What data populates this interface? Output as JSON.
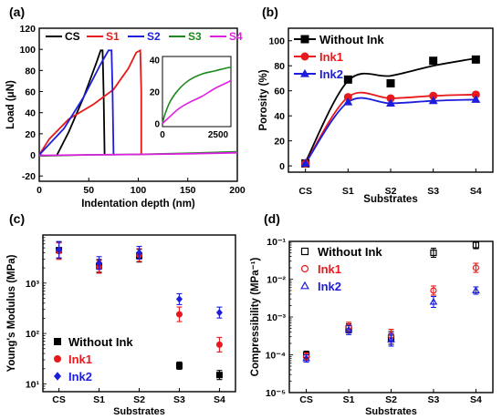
{
  "chart_data": [
    {
      "panel": "(a)",
      "type": "line",
      "xlabel": "Indentation depth (nm)",
      "ylabel": "Load (μN)",
      "xlim": [
        0,
        200
      ],
      "ylim": [
        -25,
        120
      ],
      "xticks": [
        "0",
        "50",
        "100",
        "150",
        "200"
      ],
      "yticks": [
        "-20",
        "0",
        "20",
        "40",
        "60",
        "80",
        "100",
        "120"
      ],
      "legend_position": "top",
      "series": [
        {
          "name": "CS",
          "color": "#000000",
          "points": [
            [
              18,
              0
            ],
            [
              30,
              22
            ],
            [
              45,
              55
            ],
            [
              58,
              88
            ],
            [
              62,
              99
            ],
            [
              64,
              99
            ],
            [
              65,
              60
            ],
            [
              66,
              0
            ]
          ]
        },
        {
          "name": "S1",
          "color": "#e8191c",
          "points": [
            [
              0,
              0
            ],
            [
              10,
              15
            ],
            [
              30,
              34
            ],
            [
              55,
              48
            ],
            [
              75,
              62
            ],
            [
              90,
              82
            ],
            [
              98,
              97
            ],
            [
              102,
              99
            ],
            [
              103,
              60
            ],
            [
              103,
              0
            ]
          ]
        },
        {
          "name": "S2",
          "color": "#1d1ddb",
          "points": [
            [
              0,
              0
            ],
            [
              25,
              25
            ],
            [
              45,
              55
            ],
            [
              62,
              86
            ],
            [
              70,
              99
            ],
            [
              73,
              99
            ],
            [
              74,
              60
            ],
            [
              75,
              0
            ]
          ]
        },
        {
          "name": "S3",
          "color": "#1c8a1c",
          "points": [
            [
              0,
              -1
            ],
            [
              50,
              0
            ],
            [
              100,
              0.5
            ],
            [
              150,
              1.5
            ],
            [
              200,
              3
            ]
          ]
        },
        {
          "name": "S4",
          "color": "#e020e0",
          "points": [
            [
              0,
              -0.5
            ],
            [
              50,
              0
            ],
            [
              100,
              0.5
            ],
            [
              150,
              1
            ],
            [
              200,
              2
            ]
          ]
        }
      ],
      "inset": {
        "xlim": [
          0,
          2600
        ],
        "ylim": [
          -2,
          42
        ],
        "xticks": [
          "0",
          "2500"
        ],
        "yticks": [
          "0",
          "20",
          "40"
        ],
        "series": [
          {
            "name": "S3",
            "color": "#1c8a1c",
            "points": [
              [
                0,
                0
              ],
              [
                100,
                6
              ],
              [
                300,
                14
              ],
              [
                600,
                21
              ],
              [
                1000,
                27
              ],
              [
                1500,
                31
              ],
              [
                2000,
                33
              ],
              [
                2500,
                35
              ],
              [
                2600,
                35
              ]
            ]
          },
          {
            "name": "S4",
            "color": "#e020e0",
            "points": [
              [
                0,
                0
              ],
              [
                200,
                3
              ],
              [
                600,
                9
              ],
              [
                1000,
                13
              ],
              [
                1500,
                17
              ],
              [
                2000,
                22
              ],
              [
                2500,
                26
              ],
              [
                2600,
                27
              ]
            ]
          }
        ]
      }
    },
    {
      "panel": "(b)",
      "type": "scatter",
      "xlabel": "Substrates",
      "ylabel": "Porosity (%)",
      "categories": [
        "CS",
        "S1",
        "S2",
        "S3",
        "S4"
      ],
      "ylim": [
        -5,
        110
      ],
      "yticks": [
        "0",
        "20",
        "40",
        "60",
        "80",
        "100"
      ],
      "legend_position": "top-left",
      "series": [
        {
          "name": "Without Ink",
          "color": "#000000",
          "marker": "square",
          "values": [
            2,
            69,
            66,
            84,
            85
          ],
          "fit": [
            3,
            68,
            72,
            80,
            86
          ]
        },
        {
          "name": "Ink1",
          "color": "#e8191c",
          "marker": "circle",
          "values": [
            2,
            55,
            54,
            56,
            57
          ],
          "fit": [
            2,
            55,
            54,
            56,
            57
          ]
        },
        {
          "name": "Ink2",
          "color": "#1d1ddb",
          "marker": "triangle",
          "values": [
            2,
            51,
            50,
            52,
            53
          ],
          "fit": [
            2,
            51,
            50,
            52,
            53
          ]
        }
      ]
    },
    {
      "panel": "(c)",
      "type": "scatter",
      "xlabel": "Substrates",
      "ylabel": "Young's Modulus (MPa)",
      "categories": [
        "CS",
        "S1",
        "S2",
        "S3",
        "S4"
      ],
      "yscale": "log",
      "ylim": [
        7,
        9000
      ],
      "yticks": [
        "10¹",
        "10²",
        "10³"
      ],
      "legend_position": "bottom-left",
      "series": [
        {
          "name": "Without Ink",
          "color": "#000000",
          "marker": "square",
          "values": [
            4500,
            2200,
            3500,
            23,
            15
          ]
        },
        {
          "name": "Ink1",
          "color": "#e8191c",
          "marker": "circle",
          "values": [
            4300,
            2100,
            3600,
            240,
            60
          ]
        },
        {
          "name": "Ink2",
          "color": "#1d1ddb",
          "marker": "diamond",
          "values": [
            4600,
            2500,
            4000,
            480,
            260
          ]
        }
      ]
    },
    {
      "panel": "(d)",
      "type": "scatter",
      "xlabel": "Substrates",
      "ylabel": "Compressibility (MPa⁻¹)",
      "categories": [
        "CS",
        "S1",
        "S2",
        "S3",
        "S4"
      ],
      "yscale": "log",
      "ylim": [
        1e-05,
        0.1
      ],
      "yticks": [
        "10⁻⁵",
        "10⁻⁴",
        "10⁻³",
        "10⁻²",
        "10⁻¹"
      ],
      "legend_position": "top-left",
      "series": [
        {
          "name": "Without Ink",
          "color": "#000000",
          "marker": "open-square",
          "values": [
            0.0001,
            0.0005,
            0.00028,
            0.05,
            0.08
          ]
        },
        {
          "name": "Ink1",
          "color": "#e8191c",
          "marker": "open-circle",
          "values": [
            9e-05,
            0.00055,
            0.00032,
            0.005,
            0.02
          ]
        },
        {
          "name": "Ink2",
          "color": "#1d1ddb",
          "marker": "open-triangle",
          "values": [
            8e-05,
            0.00045,
            0.00025,
            0.0025,
            0.005
          ]
        }
      ]
    }
  ]
}
